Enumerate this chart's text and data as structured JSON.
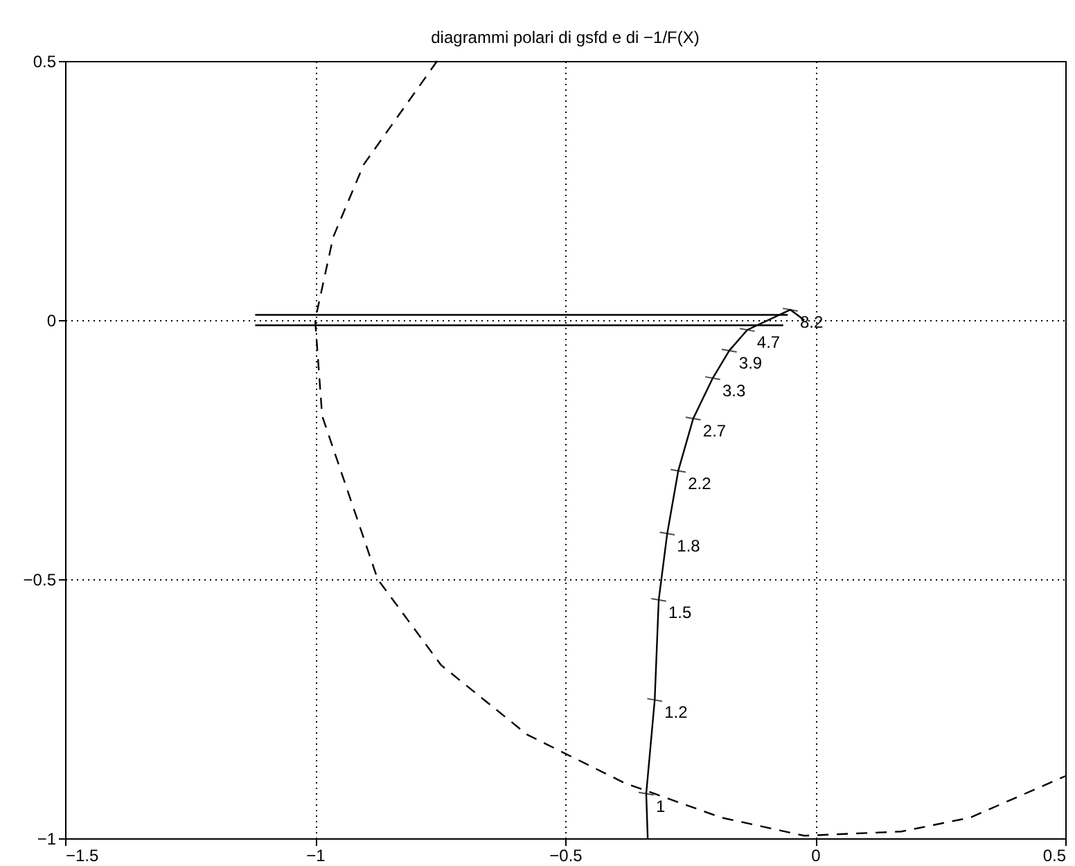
{
  "chart_data": {
    "type": "line",
    "title": "diagrammi polari di gsfd e di −1/F(X)",
    "xlim": [
      -1.5,
      0.5
    ],
    "ylim": [
      -1,
      0.5
    ],
    "xticks": [
      -1.5,
      -1,
      -0.5,
      0,
      0.5
    ],
    "yticks": [
      -1,
      -0.5,
      0,
      0.5
    ],
    "grid": true,
    "series": [
      {
        "color": "#000000",
        "line_style": "dashed",
        "x": [
          -0.756,
          -0.903,
          -0.964,
          -1,
          -0.986,
          -0.875,
          -0.748,
          -0.576,
          -0.382,
          -0.188,
          -0.022,
          0.172,
          0.31,
          0.5
        ],
        "values": [
          0.5,
          0.3,
          0.16,
          0,
          -0.185,
          -0.5,
          -0.666,
          -0.8,
          -0.893,
          -0.96,
          -0.995,
          -0.987,
          -0.96,
          -0.88
        ]
      },
      {
        "color": "#000000",
        "line_style": "solid",
        "x": [
          -0.335,
          -0.338,
          -0.321,
          -0.313,
          -0.296,
          -0.274,
          -0.244,
          -0.205,
          -0.172,
          -0.136,
          -0.05,
          -0.022
        ],
        "values": [
          -1,
          -0.914,
          -0.733,
          -0.54,
          -0.412,
          -0.291,
          -0.19,
          -0.112,
          -0.059,
          -0.019,
          0.02,
          0.0
        ]
      },
      {
        "color": "#000000",
        "line_style": "solid",
        "x": [
          -1.12,
          -0.055
        ],
        "values": [
          0.01,
          0.01
        ]
      },
      {
        "color": "#000000",
        "line_style": "solid",
        "x": [
          -1.12,
          -0.064
        ],
        "values": [
          -0.01,
          -0.01
        ]
      }
    ],
    "annotations": [
      {
        "text": "1",
        "x": -0.338,
        "y": -0.914
      },
      {
        "text": "1.2",
        "x": -0.321,
        "y": -0.733
      },
      {
        "text": "1.5",
        "x": -0.313,
        "y": -0.54
      },
      {
        "text": "1.8",
        "x": -0.296,
        "y": -0.412
      },
      {
        "text": "2.2",
        "x": -0.274,
        "y": -0.291
      },
      {
        "text": "2.7",
        "x": -0.244,
        "y": -0.19
      },
      {
        "text": "3.3",
        "x": -0.205,
        "y": -0.112
      },
      {
        "text": "3.9",
        "x": -0.172,
        "y": -0.059
      },
      {
        "text": "4.7",
        "x": -0.136,
        "y": -0.019
      },
      {
        "text": "8.2",
        "x": -0.05,
        "y": 0.02
      }
    ]
  }
}
